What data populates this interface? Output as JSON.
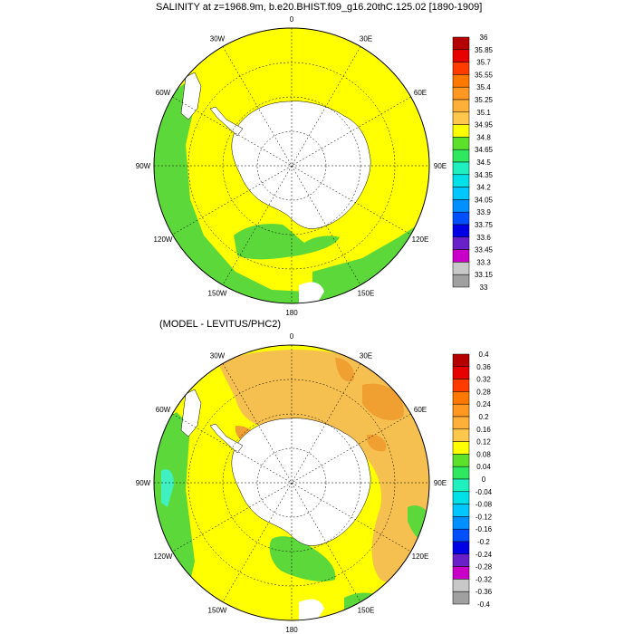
{
  "panel1": {
    "title": "SALINITY at z=1968.9m, b.e20.BHIST.f09_g16.20thC.125.02 [1890-1909]",
    "colorbar": {
      "labels": [
        "36",
        "35.85",
        "35.7",
        "35.55",
        "35.4",
        "35.25",
        "35.1",
        "34.95",
        "34.8",
        "34.65",
        "34.5",
        "34.35",
        "34.2",
        "34.05",
        "33.9",
        "33.75",
        "33.6",
        "33.45",
        "33.3",
        "33.15",
        "33"
      ]
    }
  },
  "panel2": {
    "title": "(MODEL - LEVITUS/PHC2)",
    "colorbar": {
      "labels": [
        "0.4",
        "0.36",
        "0.32",
        "0.28",
        "0.24",
        "0.2",
        "0.16",
        "0.12",
        "0.08",
        "0.04",
        "0",
        "-0.04",
        "-0.08",
        "-0.12",
        "-0.16",
        "-0.2",
        "-0.24",
        "-0.28",
        "-0.32",
        "-0.36",
        "-0.4"
      ]
    }
  },
  "longitude_labels": [
    {
      "text": "0",
      "angle": 0
    },
    {
      "text": "30E",
      "angle": 30
    },
    {
      "text": "60E",
      "angle": 60
    },
    {
      "text": "90E",
      "angle": 90
    },
    {
      "text": "120E",
      "angle": 120
    },
    {
      "text": "150E",
      "angle": 150
    },
    {
      "text": "180",
      "angle": 180
    },
    {
      "text": "150W",
      "angle": 210
    },
    {
      "text": "120W",
      "angle": 240
    },
    {
      "text": "90W",
      "angle": 270
    },
    {
      "text": "60W",
      "angle": 300
    },
    {
      "text": "30W",
      "angle": 330
    }
  ],
  "colors": {
    "colorbar_top_to_bottom": [
      "#b40000",
      "#e60000",
      "#ff3c00",
      "#ff7800",
      "#ff9820",
      "#ffb038",
      "#ffc84c",
      "#ffff00",
      "#5ce02a",
      "#30e860",
      "#20f0c0",
      "#00e0e8",
      "#00c8ff",
      "#0090ff",
      "#0050ff",
      "#0000e6",
      "#6a20c8",
      "#c800c8",
      "#c8c8c8",
      "#a0a0a0",
      "#707070"
    ],
    "yellow": "#ffff00",
    "green": "#5cd83a",
    "lightorange": "#f5c050",
    "orange": "#f0a030",
    "cyan": "#40f0c0",
    "land": "#ffffff"
  }
}
